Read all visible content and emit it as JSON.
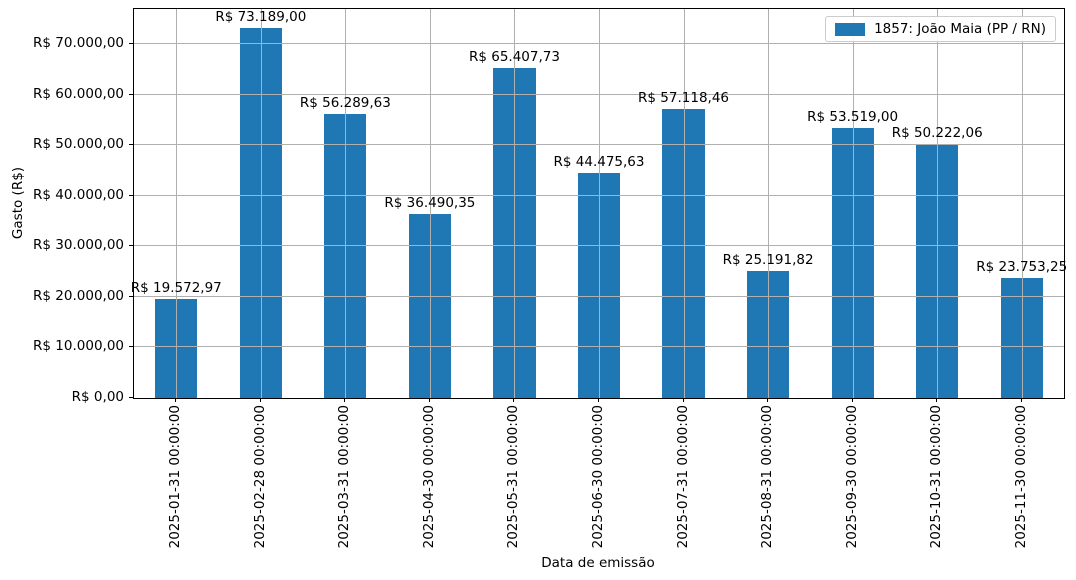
{
  "chart_data": {
    "type": "bar",
    "title": "",
    "xlabel": "Data de emissão",
    "ylabel": "Gasto (R$)",
    "categories": [
      "2025-01-31 00:00:00",
      "2025-02-28 00:00:00",
      "2025-03-31 00:00:00",
      "2025-04-30 00:00:00",
      "2025-05-31 00:00:00",
      "2025-06-30 00:00:00",
      "2025-07-31 00:00:00",
      "2025-08-31 00:00:00",
      "2025-09-30 00:00:00",
      "2025-10-31 00:00:00",
      "2025-11-30 00:00:00"
    ],
    "values": [
      19572.97,
      73189.0,
      56289.63,
      36490.35,
      65407.73,
      44475.63,
      57118.46,
      25191.82,
      53519.0,
      50222.06,
      23753.25
    ],
    "bar_labels": [
      "R$ 19.572,97",
      "R$ 73.189,00",
      "R$ 56.289,63",
      "R$ 36.490,35",
      "R$ 65.407,73",
      "R$ 44.475,63",
      "R$ 57.118,46",
      "R$ 25.191,82",
      "R$ 53.519,00",
      "R$ 50.222,06",
      "R$ 23.753,25"
    ],
    "y_tick_labels": [
      "R$ 0,00",
      "R$ 10.000,00",
      "R$ 20.000,00",
      "R$ 30.000,00",
      "R$ 40.000,00",
      "R$ 50.000,00",
      "R$ 60.000,00",
      "R$ 70.000,00"
    ],
    "y_tick_values": [
      0,
      10000,
      20000,
      30000,
      40000,
      50000,
      60000,
      70000
    ],
    "ylim": [
      0,
      77000
    ],
    "grid": true,
    "bar_width_fraction": 0.5,
    "legend": {
      "label": "1857: João Maia (PP / RN)",
      "position": "upper right"
    },
    "colors": {
      "bar": "#1f77b4",
      "grid": "#b0b0b0",
      "spine": "#000000",
      "legend_border": "#cccccc",
      "text": "#000000"
    }
  }
}
